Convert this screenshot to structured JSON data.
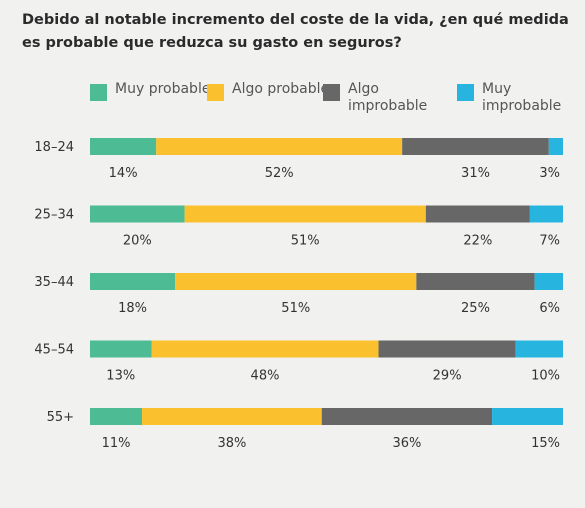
{
  "title": "Debido al notable incremento del coste de la vida, ¿en qué medida es probable que reduzca su gasto en seguros?",
  "chart_data": {
    "type": "bar",
    "orientation": "horizontal",
    "stacked": true,
    "title": "Debido al notable incremento del coste de la vida, ¿en qué medida es probable que reduzca su gasto en seguros?",
    "categories": [
      "18–24",
      "25–34",
      "35–44",
      "45–54",
      "55+"
    ],
    "series": [
      {
        "name": "Muy probable",
        "color": "#4dbb94",
        "values": [
          14,
          20,
          18,
          13,
          11
        ]
      },
      {
        "name": "Algo probable",
        "color": "#fbc02d",
        "values": [
          52,
          51,
          51,
          48,
          38
        ]
      },
      {
        "name": "Algo improbable",
        "color": "#676767",
        "values": [
          31,
          22,
          25,
          29,
          36
        ]
      },
      {
        "name": "Muy improbable",
        "color": "#27b5e0",
        "values": [
          3,
          7,
          6,
          10,
          15
        ]
      }
    ],
    "legend": "top",
    "grid": false
  }
}
